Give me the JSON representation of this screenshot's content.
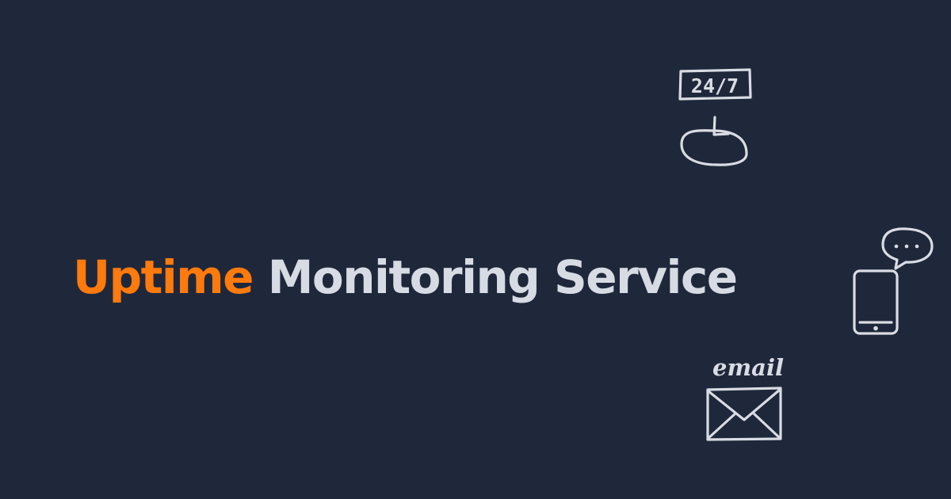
{
  "page": {
    "background_color": "#1f283b",
    "accent_color": "#ff7a0d",
    "text_color": "#d7dbe3"
  },
  "headline": {
    "accent_word": "Uptime",
    "rest": "Monitoring Service"
  },
  "icons": {
    "schedule": {
      "name": "clock-24-7-icon",
      "label": "24/7"
    },
    "sms": {
      "name": "mobile-phone-message-icon"
    },
    "email": {
      "name": "email-envelope-icon",
      "label": "email"
    }
  }
}
